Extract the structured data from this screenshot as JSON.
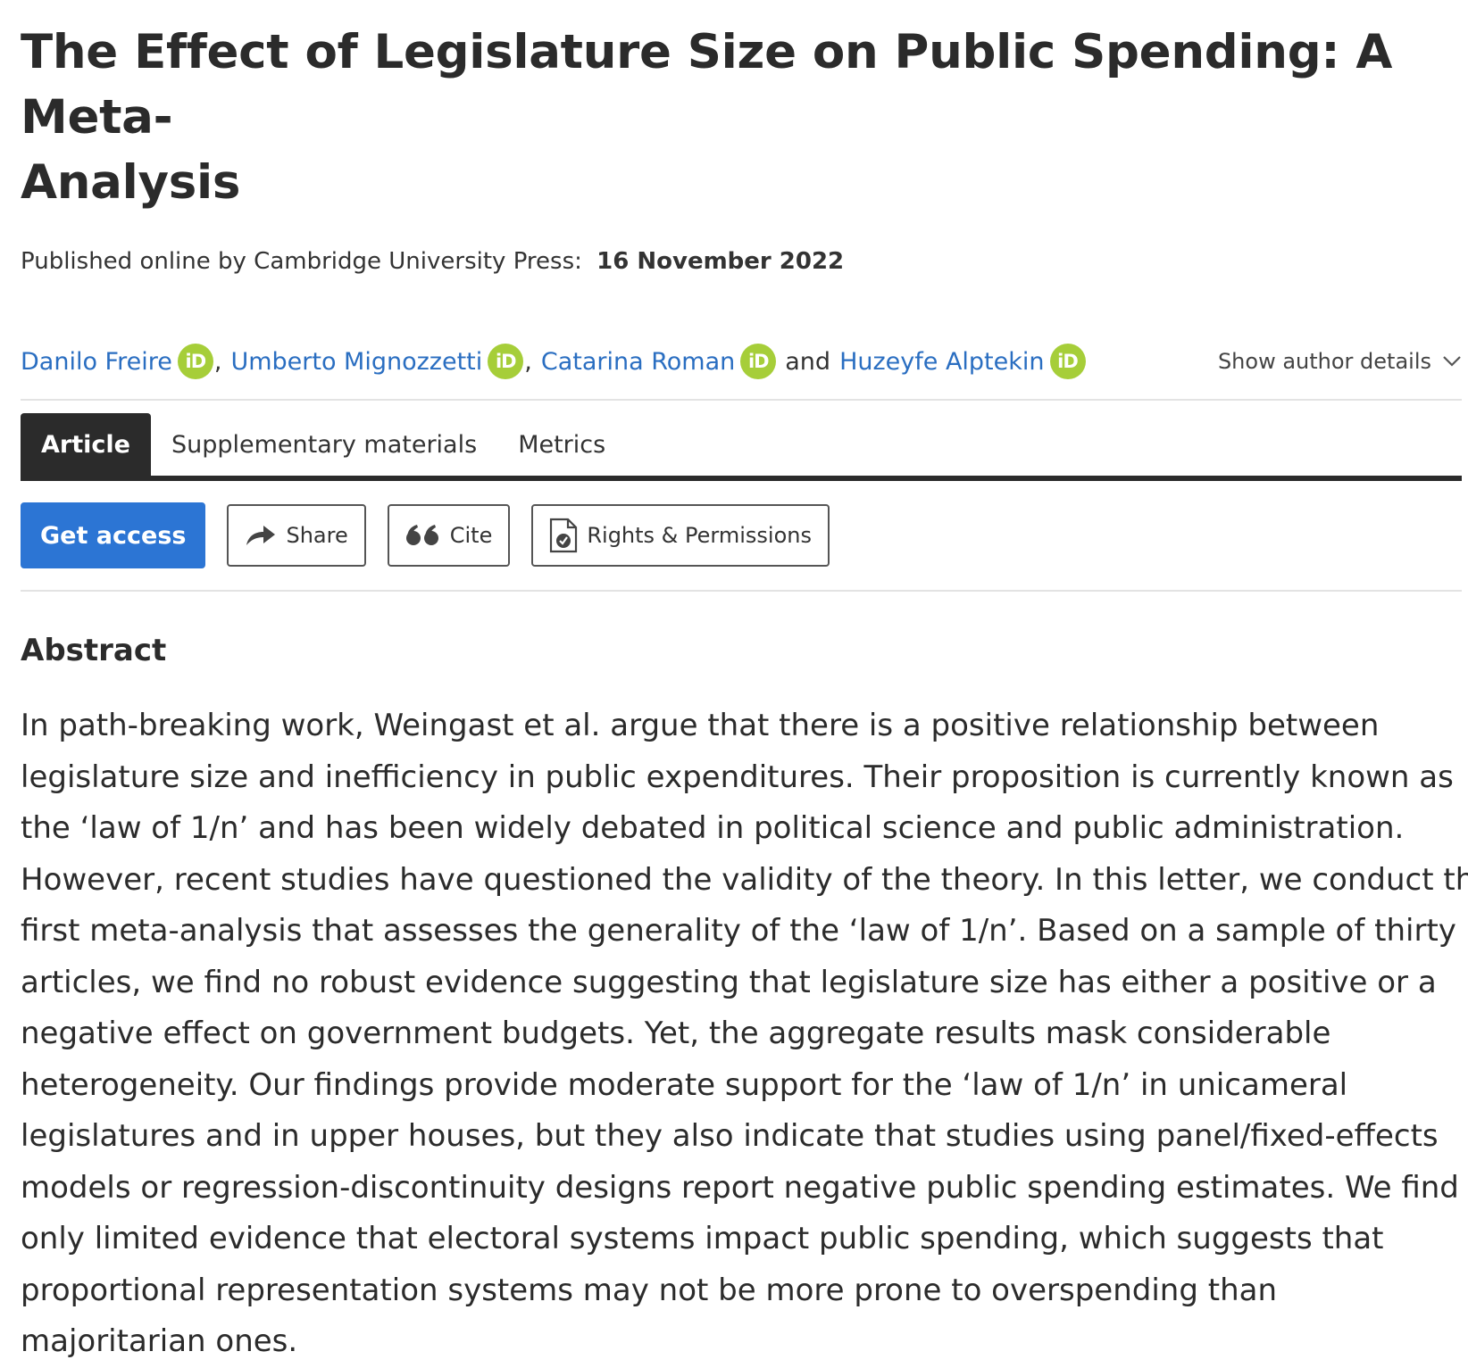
{
  "article": {
    "title_line1": "The Effect of Legislature Size on Public Spending: A Meta-",
    "title_line2": "Analysis",
    "published_label": "Published online by Cambridge University Press:",
    "published_date": "16 November 2022"
  },
  "authors": {
    "items": [
      {
        "name": "Danilo Freire",
        "orcid": "iD"
      },
      {
        "name": "Umberto Mignozzetti",
        "orcid": "iD"
      },
      {
        "name": "Catarina Roman",
        "orcid": "iD"
      },
      {
        "name": "Huzeyfe Alptekin",
        "orcid": "iD"
      }
    ],
    "separator": ",",
    "conjunction": "and",
    "show_details_label": "Show author details"
  },
  "tabs": [
    {
      "label": "Article",
      "active": true
    },
    {
      "label": "Supplementary materials",
      "active": false
    },
    {
      "label": "Metrics",
      "active": false
    }
  ],
  "actions": {
    "get_access": "Get access",
    "share": "Share",
    "cite": "Cite",
    "rights": "Rights & Permissions"
  },
  "abstract": {
    "heading": "Abstract",
    "lines": [
      "In path-breaking work, Weingast et al. argue that there is a positive relationship between",
      "legislature size and inefficiency in public expenditures. Their proposition is currently known as",
      "the ‘law of 1/n’ and has been widely debated in political science and public administration.",
      "However, recent studies have questioned the validity of the theory. In this letter, we conduct the",
      "first meta-analysis that assesses the generality of the ‘law of 1/n’. Based on a sample of thirty",
      "articles, we find no robust evidence suggesting that legislature size has either a positive or a",
      "negative effect on government budgets. Yet, the aggregate results mask considerable",
      "heterogeneity. Our findings provide moderate support for the ‘law of 1/n’ in unicameral",
      "legislatures and in upper houses, but they also indicate that studies using panel/fixed-effects",
      "models or regression-discontinuity designs report negative public spending estimates. We find",
      "only limited evidence that electoral systems impact public spending, which suggests that",
      "proportional representation systems may not be more prone to overspending than",
      "majoritarian ones."
    ]
  },
  "colors": {
    "link": "#2a6ec1",
    "orcid": "#a6ce39",
    "primary_button": "#2c75d4",
    "tab_active": "#2b2b2b"
  },
  "icons": {
    "orcid": "orcid-icon",
    "chevron": "chevron-down-icon",
    "share": "share-arrow-icon",
    "cite": "quote-icon",
    "rights": "document-check-icon"
  }
}
